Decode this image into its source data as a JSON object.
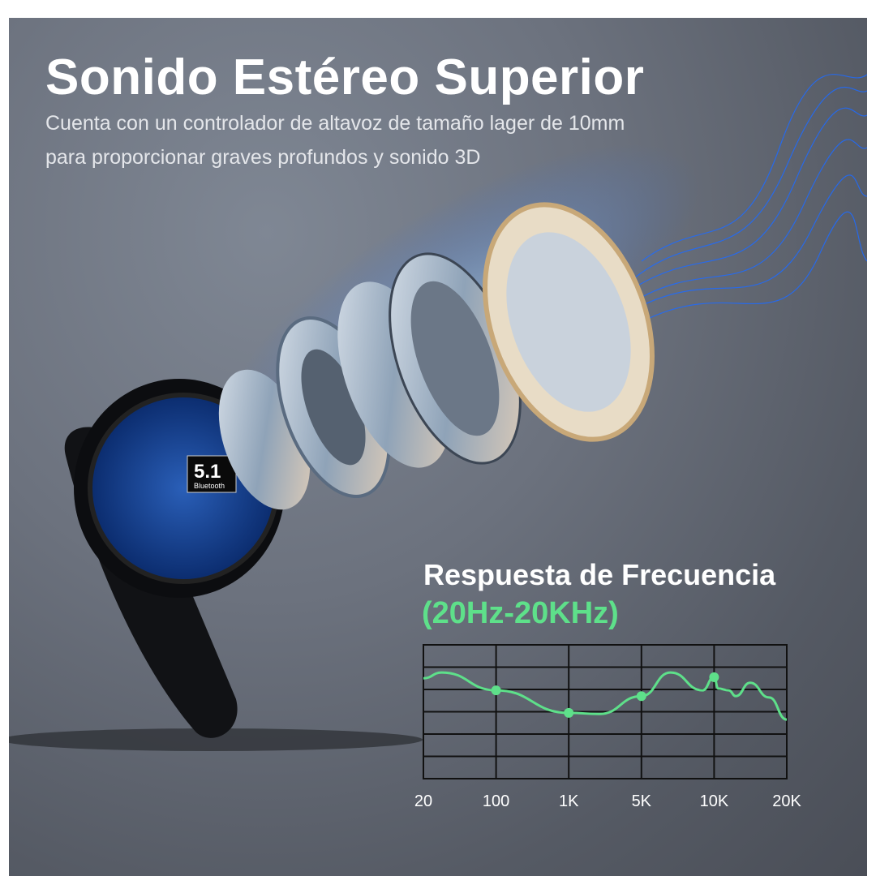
{
  "header": {
    "title": "Sonido Estéreo Superior",
    "subtitle_lines": [
      "Cuenta con un controlador de altavoz de tamaño lager de 10mm",
      "para proporcionar graves profundos y sonido 3D"
    ]
  },
  "illustration": {
    "chip_label": "5.1",
    "chip_sublabel": "Bluetooth",
    "accent_wave_color": "#1e6bff"
  },
  "chart_data": {
    "type": "line",
    "title": "Respuesta de Frecuencia",
    "subtitle": "(20Hz-20KHz)",
    "x_scale": "log (piecewise, equal spacing between ticks)",
    "x_ticks": [
      20,
      100,
      1000,
      5000,
      10000,
      20000
    ],
    "x_tick_labels": [
      "20",
      "100",
      "1K",
      "5K",
      "10K",
      "20K"
    ],
    "y_grid_divisions": 6,
    "grid": true,
    "line_color": "#5ee08a",
    "subtitle_color": "#5ee08a",
    "curve": [
      {
        "x": 20,
        "y": 4.5
      },
      {
        "x": 30,
        "y": 4.76
      },
      {
        "x": 100,
        "y": 3.96
      },
      {
        "x": 1000,
        "y": 2.95
      },
      {
        "x": 1970,
        "y": 2.9
      },
      {
        "x": 5000,
        "y": 3.7
      },
      {
        "x": 6600,
        "y": 4.76
      },
      {
        "x": 8950,
        "y": 3.96
      },
      {
        "x": 10000,
        "y": 4.55
      },
      {
        "x": 10400,
        "y": 4.04
      },
      {
        "x": 11500,
        "y": 3.96
      },
      {
        "x": 12300,
        "y": 3.7
      },
      {
        "x": 14100,
        "y": 4.3
      },
      {
        "x": 16900,
        "y": 3.64
      },
      {
        "x": 20000,
        "y": 2.65
      }
    ],
    "markers": [
      {
        "x": 100,
        "y": 3.96
      },
      {
        "x": 1000,
        "y": 2.95
      },
      {
        "x": 5000,
        "y": 3.7
      },
      {
        "x": 10000,
        "y": 4.55
      }
    ]
  }
}
